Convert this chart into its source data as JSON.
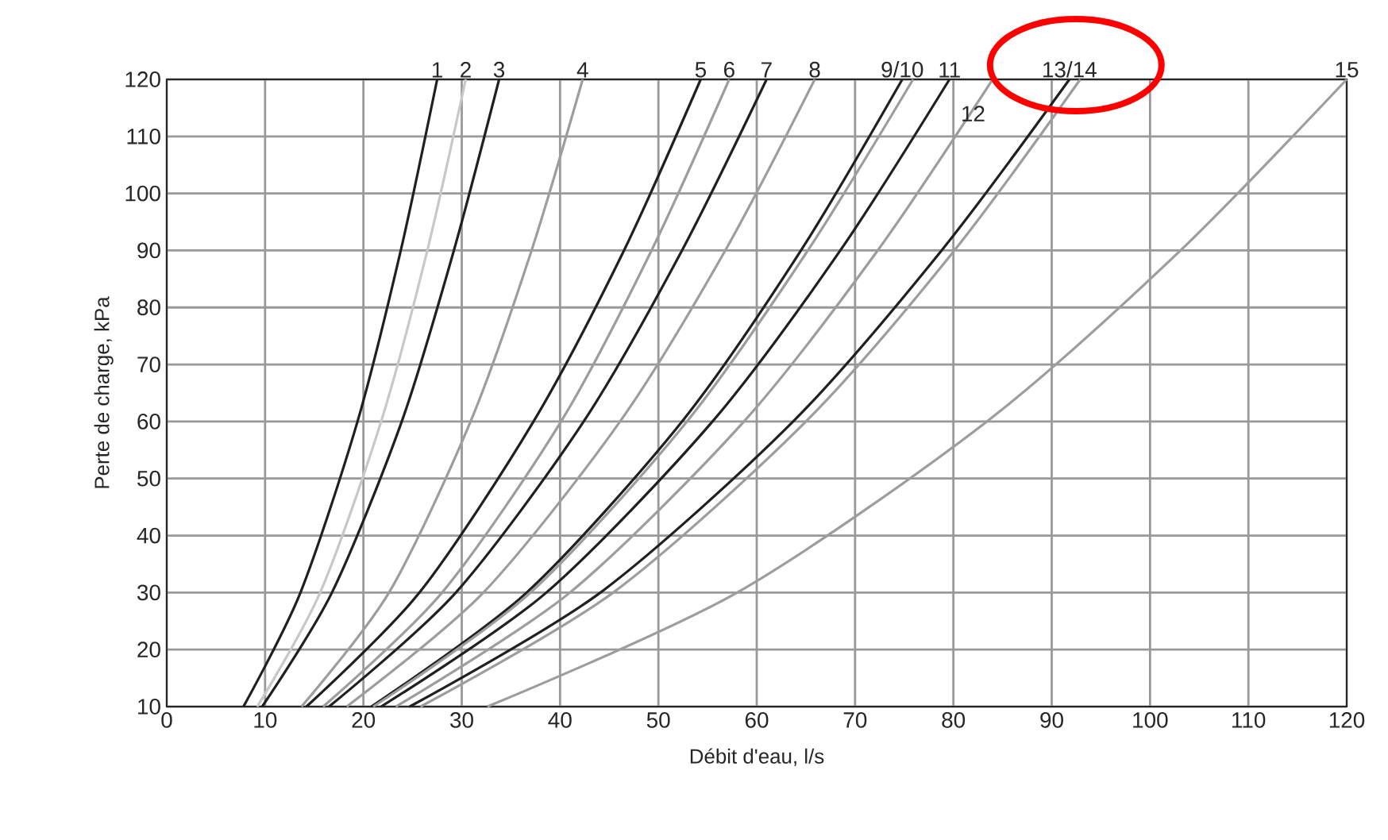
{
  "chart_data": {
    "type": "line",
    "xlabel": "Débit d'eau, l/s",
    "ylabel": "Perte de charge, kPa",
    "xlim": [
      0,
      120
    ],
    "ylim": [
      10,
      120
    ],
    "xticks": [
      0,
      10,
      20,
      30,
      40,
      50,
      60,
      70,
      80,
      90,
      100,
      110,
      120
    ],
    "yticks": [
      10,
      20,
      30,
      40,
      50,
      60,
      70,
      80,
      90,
      100,
      110,
      120
    ],
    "grid": true,
    "marker": "none",
    "line_style": "solid",
    "annotations": [
      {
        "text": "12",
        "x": 82,
        "y": 114
      }
    ],
    "series": [
      {
        "name": "1",
        "color": "#231f20",
        "x": [
          7.8,
          13.6,
          19.4,
          23.8,
          27.5
        ],
        "values": [
          10,
          30,
          60,
          90,
          120
        ]
      },
      {
        "name": "2",
        "color": "#c8c8c8",
        "x": [
          9.2,
          15.6,
          21.8,
          26.5,
          30.4
        ],
        "values": [
          10,
          30,
          60,
          90,
          120
        ]
      },
      {
        "name": "3",
        "color": "#231f20",
        "x": [
          9.7,
          16.8,
          23.9,
          29.2,
          33.8
        ],
        "values": [
          10,
          30,
          60,
          90,
          120
        ]
      },
      {
        "name": "4",
        "color": "#9d9d9d",
        "x": [
          13.7,
          22.6,
          30.9,
          37.1,
          42.3
        ],
        "values": [
          10,
          30,
          60,
          90,
          120
        ]
      },
      {
        "name": "5",
        "color": "#231f20",
        "x": [
          14.2,
          25.7,
          37.3,
          46.5,
          54.3
        ],
        "values": [
          10,
          30,
          60,
          90,
          120
        ]
      },
      {
        "name": "6",
        "color": "#9d9d9d",
        "x": [
          15.9,
          28.0,
          40.1,
          49.3,
          57.2
        ],
        "values": [
          10,
          30,
          60,
          90,
          120
        ]
      },
      {
        "name": "7",
        "color": "#231f20",
        "x": [
          16.5,
          29.4,
          42.4,
          52.4,
          61.0
        ],
        "values": [
          10,
          30,
          60,
          90,
          120
        ]
      },
      {
        "name": "8",
        "color": "#9d9d9d",
        "x": [
          18.3,
          32.2,
          46.1,
          56.8,
          65.9
        ],
        "values": [
          10,
          30,
          60,
          90,
          120
        ]
      },
      {
        "name": "9/10",
        "color": "#231f20",
        "x": [
          20.8,
          36.6,
          52.4,
          64.5,
          74.8
        ],
        "values": [
          10,
          30,
          60,
          90,
          120
        ]
      },
      {
        "color": "#9d9d9d",
        "x": [
          21.0,
          37.0,
          52.9,
          65.2,
          75.9
        ],
        "values": [
          10,
          30,
          60,
          90,
          120
        ]
      },
      {
        "name": "11",
        "color": "#231f20",
        "x": [
          21.8,
          38.6,
          55.5,
          68.5,
          79.6
        ],
        "values": [
          10,
          30,
          60,
          90,
          120
        ]
      },
      {
        "color": "#9d9d9d",
        "x": [
          23.3,
          41.0,
          58.7,
          72.3,
          84.0
        ],
        "values": [
          10,
          30,
          60,
          90,
          120
        ]
      },
      {
        "name": "13/14",
        "color": "#231f20",
        "x": [
          24.7,
          44.1,
          63.7,
          78.8,
          91.8
        ],
        "values": [
          10,
          30,
          60,
          90,
          120
        ]
      },
      {
        "color": "#9d9d9d",
        "x": [
          25.8,
          45.4,
          65.0,
          80.1,
          92.9
        ],
        "values": [
          10,
          30,
          60,
          90,
          120
        ]
      },
      {
        "name": "15",
        "color": "#9d9d9d",
        "x": [
          32.6,
          58.0,
          83.4,
          103.1,
          120.0
        ],
        "values": [
          10,
          30,
          60,
          90,
          120
        ]
      }
    ]
  }
}
